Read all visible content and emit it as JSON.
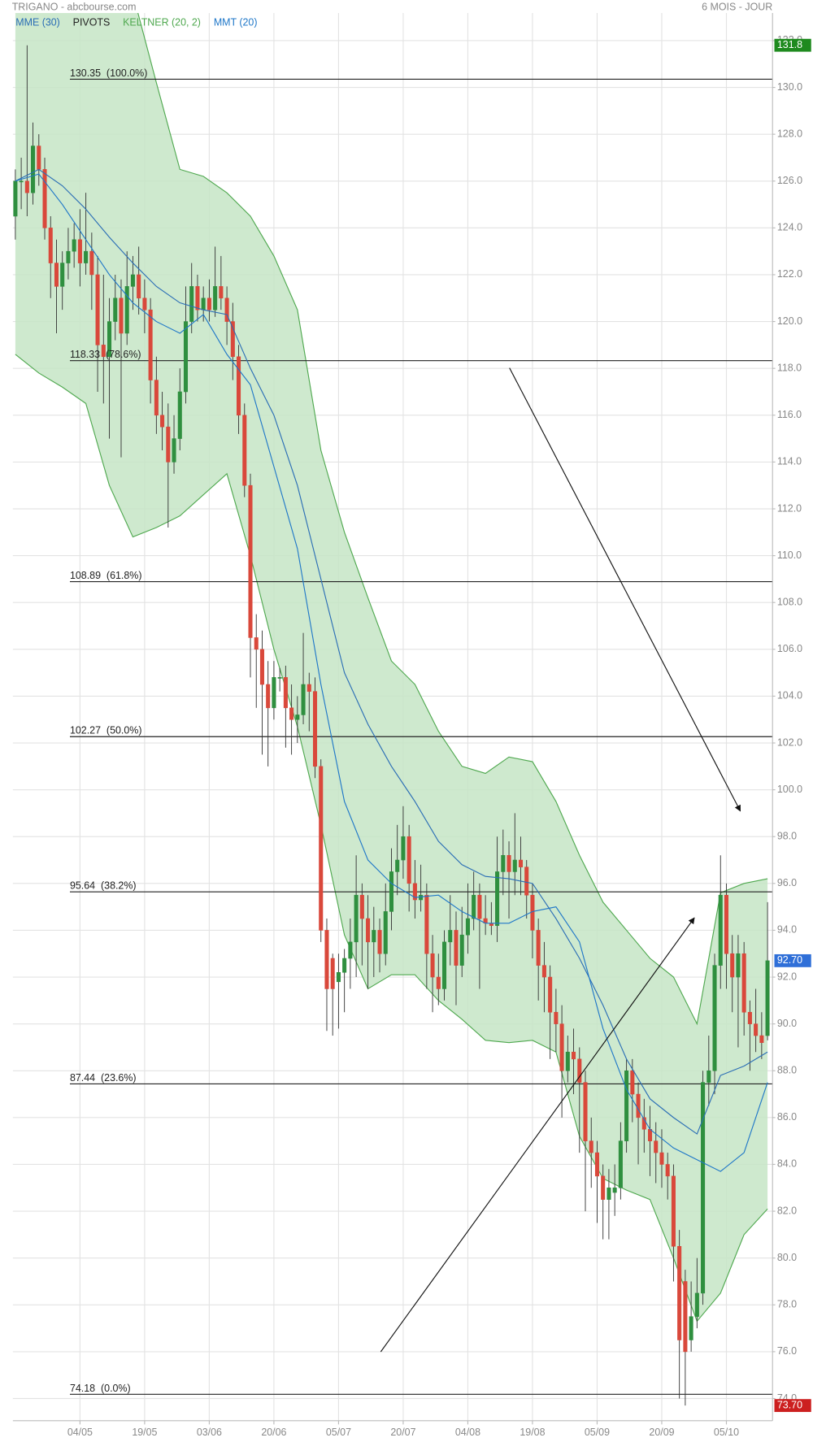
{
  "header": {
    "left": "TRIGANO - abcbourse.com",
    "right": "6 MOIS - JOUR"
  },
  "chart_data": {
    "type": "candlestick",
    "up_color": "#2f8f3f",
    "down_color": "#d9483b",
    "open": [
      124.5,
      126,
      126,
      125.5,
      127.5,
      126.5,
      124,
      122.5,
      121.5,
      122.5,
      123,
      123.5,
      122.5,
      123,
      122,
      119,
      118.5,
      120,
      121,
      119.5,
      121.5,
      122,
      121,
      120.5,
      117.5,
      116,
      115.5,
      114,
      115,
      117,
      120,
      121.5,
      120.5,
      121,
      120.5,
      121.5,
      121,
      120,
      118.5,
      116,
      113,
      106.5,
      106,
      104.5,
      103.5,
      104.8,
      104.8,
      103.5,
      103,
      103.2,
      104.5,
      104.2,
      101,
      94,
      92.8,
      91.8,
      92.2,
      92.8,
      93.5,
      95.5,
      94.5,
      93.5,
      94,
      93,
      94.8,
      96.5,
      97,
      98,
      96,
      95.3,
      95.5,
      93,
      92,
      91.5,
      93.5,
      94,
      92.5,
      93.8,
      94.5,
      95.5,
      94.5,
      94.3,
      94.2,
      96.5,
      97.2,
      96.5,
      97,
      96.7,
      95.5,
      94,
      92.5,
      92,
      90.5,
      90,
      88,
      88.8,
      88.5,
      87.5,
      85,
      84.5,
      83.5,
      82.5,
      82.8,
      83,
      85,
      88,
      87,
      86,
      85.5,
      85,
      84.5,
      84,
      83.5,
      80.5,
      79,
      76.5,
      77.5,
      78.5,
      87.5,
      88,
      92.5,
      95.5,
      93,
      92,
      93,
      90.5,
      90,
      89.5,
      89.5
    ],
    "high": [
      126.5,
      127,
      131.8,
      128.5,
      128,
      127,
      124.5,
      123.5,
      123,
      124,
      124.2,
      124.8,
      125.5,
      123.8,
      122.8,
      122,
      121,
      122,
      121.8,
      123,
      122.8,
      123.2,
      121.8,
      121,
      118.5,
      117,
      116.5,
      116,
      118,
      121.5,
      122.5,
      122,
      121.5,
      121.8,
      123.2,
      122.8,
      121.5,
      120.8,
      119,
      116.5,
      113.5,
      107.5,
      106.8,
      105.5,
      105.5,
      105.2,
      105.3,
      104.5,
      104,
      106.7,
      105,
      104.8,
      101.3,
      94.5,
      93,
      93,
      93.2,
      94.5,
      97.2,
      96,
      95.5,
      95,
      94.5,
      96,
      97.5,
      98.5,
      99.3,
      98.5,
      97,
      96.8,
      96,
      93.8,
      93,
      94,
      95.5,
      94.8,
      95,
      96,
      96.5,
      96,
      95.5,
      95.2,
      98,
      98.3,
      97.8,
      99,
      98,
      97,
      96,
      94.5,
      93.5,
      92.5,
      91.5,
      90.8,
      89.5,
      89.8,
      89,
      88,
      86,
      85,
      84,
      83.8,
      84,
      85.8,
      88.5,
      88.5,
      87.5,
      86.8,
      86.5,
      85.8,
      85.5,
      84.5,
      84,
      81.2,
      79.5,
      79,
      80,
      88,
      89.5,
      93,
      97.2,
      96,
      93.8,
      93.8,
      93.5,
      91,
      91.5,
      90.5,
      95.2
    ],
    "low": [
      123.5,
      124.8,
      124.5,
      125,
      125.8,
      123.5,
      121,
      119.5,
      120.5,
      121.8,
      122.3,
      121.5,
      122,
      120.5,
      117,
      116.5,
      115,
      119.2,
      114.2,
      119,
      120.5,
      120.3,
      119.5,
      116.5,
      115.2,
      114.5,
      111.2,
      113.5,
      114.5,
      116.5,
      119.5,
      120,
      120,
      120,
      120.2,
      120.5,
      119,
      117.5,
      115.2,
      112.5,
      104.8,
      103.5,
      101.5,
      101,
      103,
      104.2,
      101.8,
      101.5,
      102,
      102.8,
      102.5,
      100.5,
      93.5,
      89.7,
      89.5,
      89.8,
      90.5,
      91.5,
      92,
      92.5,
      91.5,
      92,
      92.2,
      92.5,
      94,
      95.5,
      96.2,
      94.8,
      94.5,
      94.8,
      91.5,
      90.5,
      90.8,
      91,
      92.5,
      90.8,
      92,
      93,
      94,
      91.5,
      93.8,
      93.8,
      93.5,
      95.5,
      94.5,
      95.5,
      95.5,
      94.5,
      92.8,
      91,
      90.5,
      88.5,
      88.8,
      86,
      87.5,
      87,
      84.5,
      82,
      83,
      81.5,
      80.8,
      80.8,
      81.8,
      82.5,
      84.5,
      85.8,
      84,
      84.5,
      83.5,
      83.2,
      83,
      82.5,
      79,
      74,
      73.7,
      76,
      77,
      78,
      86.5,
      87,
      91.5,
      91.5,
      90.5,
      89,
      89.5,
      88,
      88.8,
      88.5,
      89.3
    ],
    "close": [
      126,
      126,
      125.5,
      127.5,
      126.5,
      124,
      122.5,
      121.5,
      122.5,
      123,
      123.5,
      122.5,
      123,
      122,
      119,
      118.5,
      120,
      121,
      119.5,
      121.5,
      122,
      121,
      120.5,
      117.5,
      116,
      115.5,
      114,
      115,
      117,
      120,
      121.5,
      120.5,
      121,
      120.5,
      121.5,
      121,
      120,
      118.5,
      116,
      113,
      106.5,
      106,
      104.5,
      103.5,
      104.8,
      104.8,
      103.5,
      103,
      103.2,
      104.5,
      104.2,
      101,
      94,
      91.5,
      91.5,
      92.2,
      92.8,
      93.5,
      95.5,
      94.5,
      93.5,
      94,
      93,
      94.8,
      96.5,
      97,
      98,
      96,
      95.3,
      95.5,
      93,
      92,
      91.5,
      93.5,
      94,
      92.5,
      93.8,
      94.5,
      95.5,
      94.5,
      94.3,
      94.2,
      96.5,
      97.2,
      96.5,
      97,
      96.7,
      95.5,
      94,
      92.5,
      92,
      90.5,
      90,
      88,
      88.8,
      88.5,
      87.5,
      85,
      84.5,
      83.5,
      82.5,
      83,
      83,
      85,
      88,
      87,
      86,
      85.5,
      85,
      84.5,
      84,
      83.5,
      80.5,
      76.5,
      76,
      77.5,
      78.5,
      87.5,
      88,
      92.5,
      95.5,
      93,
      92,
      93,
      90.5,
      90,
      89.5,
      89.2,
      92.7
    ],
    "xlim": [
      -0.42,
      128.85
    ],
    "xticks": [
      {
        "value": 11,
        "label": "04/05"
      },
      {
        "value": 22,
        "label": "19/05"
      },
      {
        "value": 33,
        "label": "03/06"
      },
      {
        "value": 44,
        "label": "20/06"
      },
      {
        "value": 55,
        "label": "05/07"
      },
      {
        "value": 66,
        "label": "20/07"
      },
      {
        "value": 77,
        "label": "04/08"
      },
      {
        "value": 88,
        "label": "19/08"
      },
      {
        "value": 99,
        "label": "05/09"
      },
      {
        "value": 110,
        "label": "20/09"
      },
      {
        "value": 121,
        "label": "05/10"
      }
    ],
    "ylim": [
      73.05,
      133.18
    ],
    "yticks": [
      {
        "value": 74,
        "label": "74.0"
      },
      {
        "value": 76,
        "label": "76.0"
      },
      {
        "value": 78,
        "label": "78.0"
      },
      {
        "value": 80,
        "label": "80.0"
      },
      {
        "value": 82,
        "label": "82.0"
      },
      {
        "value": 84,
        "label": "84.0"
      },
      {
        "value": 86,
        "label": "86.0"
      },
      {
        "value": 88,
        "label": "88.0"
      },
      {
        "value": 90,
        "label": "90.0"
      },
      {
        "value": 92,
        "label": "92.0"
      },
      {
        "value": 94,
        "label": "94.0"
      },
      {
        "value": 96,
        "label": "96.0"
      },
      {
        "value": 98,
        "label": "98.0"
      },
      {
        "value": 100,
        "label": "100.0"
      },
      {
        "value": 102,
        "label": "102.0"
      },
      {
        "value": 104,
        "label": "104.0"
      },
      {
        "value": 106,
        "label": "106.0"
      },
      {
        "value": 108,
        "label": "108.0"
      },
      {
        "value": 110,
        "label": "110.0"
      },
      {
        "value": 112,
        "label": "112.0"
      },
      {
        "value": 114,
        "label": "114.0"
      },
      {
        "value": 116,
        "label": "116.0"
      },
      {
        "value": 118,
        "label": "118.0"
      },
      {
        "value": 120,
        "label": "120.0"
      },
      {
        "value": 122,
        "label": "122.0"
      },
      {
        "value": 124,
        "label": "124.0"
      },
      {
        "value": 126,
        "label": "126.0"
      },
      {
        "value": 128,
        "label": "128.0"
      },
      {
        "value": 130,
        "label": "130.0"
      },
      {
        "value": 132,
        "label": "132.0"
      }
    ],
    "grid": true,
    "lines": [
      {
        "name": "MME (30)",
        "color": "#2a6db5",
        "x": [
          0,
          4,
          8,
          12,
          16,
          20,
          24,
          28,
          32,
          36,
          40,
          44,
          48,
          52,
          56,
          60,
          64,
          68,
          72,
          76,
          80,
          84,
          88,
          92,
          96,
          100,
          104,
          108,
          112,
          116,
          120,
          124,
          128
        ],
        "values": [
          126,
          126.5,
          125.8,
          124.8,
          123.6,
          122.5,
          121.5,
          120.8,
          120.5,
          120.3,
          118,
          116,
          113,
          109,
          105,
          102.8,
          101,
          99.5,
          97.8,
          96.8,
          96.3,
          96.2,
          96,
          94.5,
          92.8,
          90.8,
          88.5,
          86.8,
          86,
          85.3,
          87.8,
          88.2,
          88.8
        ]
      },
      {
        "name": "MMT (20)",
        "color": "#1f77c8",
        "x": [
          0,
          4,
          8,
          12,
          16,
          20,
          24,
          28,
          32,
          36,
          40,
          44,
          48,
          52,
          56,
          60,
          64,
          68,
          72,
          76,
          80,
          84,
          88,
          92,
          96,
          100,
          104,
          108,
          112,
          116,
          120,
          124,
          128
        ],
        "values": [
          126,
          126.3,
          125,
          123.5,
          122,
          120.8,
          120,
          119.5,
          120.3,
          118.6,
          117.3,
          113.8,
          110.3,
          104.5,
          99.5,
          97,
          96,
          95.4,
          95.5,
          94.8,
          94.3,
          94.3,
          94.8,
          95,
          93.5,
          89.8,
          87.2,
          85.5,
          84.7,
          84.2,
          83.7,
          84.5,
          87.5
        ]
      }
    ],
    "band": {
      "name": "KELTNER (20, 2)",
      "color": "#4fa84f",
      "fill": "#c6e5c6",
      "x": [
        0,
        4,
        8,
        12,
        16,
        20,
        24,
        28,
        32,
        36,
        40,
        44,
        48,
        52,
        56,
        60,
        64,
        68,
        72,
        76,
        80,
        84,
        88,
        92,
        96,
        100,
        104,
        108,
        112,
        116,
        120,
        124,
        128
      ],
      "upper": [
        136,
        136,
        136,
        136,
        135,
        134,
        130.2,
        126.5,
        126.2,
        125.5,
        124.5,
        122.8,
        120.5,
        114.5,
        111,
        108.2,
        105.5,
        104.5,
        102.5,
        101,
        100.7,
        101.4,
        101.2,
        99.5,
        97.2,
        95.2,
        94,
        92.8,
        92,
        90,
        95.6,
        96,
        96.2
      ],
      "lower": [
        118.6,
        117.8,
        117.2,
        116.5,
        113,
        110.8,
        111.2,
        111.7,
        112.6,
        113.5,
        110,
        106,
        102.7,
        98.5,
        93.8,
        91.5,
        92.1,
        92.1,
        91,
        90.2,
        89.3,
        89.2,
        89.3,
        88.8,
        85.2,
        83.4,
        82.9,
        82.5,
        80,
        77.3,
        78.5,
        81,
        82.1
      ]
    },
    "levels": {
      "name": "PIVOTS",
      "color": "#222222",
      "items": [
        {
          "value": 130.35,
          "label": "130.35  (100.0%)"
        },
        {
          "value": 118.33,
          "label": "118.33  (78.6%)"
        },
        {
          "value": 108.89,
          "label": "108.89  (61.8%)"
        },
        {
          "value": 102.27,
          "label": "102.27  (50.0%)"
        },
        {
          "value": 95.64,
          "label": "95.64  (38.2%)"
        },
        {
          "value": 87.44,
          "label": "87.44  (23.6%)"
        },
        {
          "value": 74.18,
          "label": "74.18  (0.0%)"
        }
      ]
    },
    "price_markers": [
      {
        "value": 131.8,
        "label": "131.8",
        "color": "#1e8a1e"
      },
      {
        "value": 92.7,
        "label": "92.70",
        "color": "#2f6fd8"
      },
      {
        "value": 73.7,
        "label": "73.70",
        "color": "#cc1f1f"
      }
    ]
  }
}
